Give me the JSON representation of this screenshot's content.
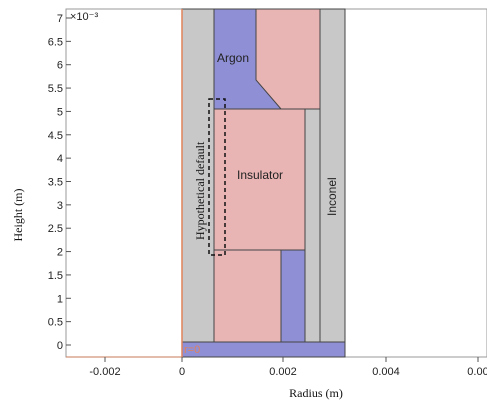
{
  "figure": {
    "exponent_label": "×10⁻³",
    "y_axis_label": "Height (m)",
    "x_axis_label": "Radius (m)",
    "r0_label": "r=0",
    "y_ticks": [
      "7",
      "6.5",
      "6",
      "5.5",
      "5",
      "4.5",
      "4",
      "3.5",
      "3",
      "2.5",
      "2",
      "1.5",
      "1",
      "0.5",
      "0"
    ],
    "x_ticks": [
      "-0.002",
      "0",
      "0.002",
      "0.004",
      "0.00"
    ]
  },
  "labels": {
    "argon": "Argon",
    "insulator": "Insulator",
    "inconel": "Inconel",
    "hypothetical": "Hypothetical default"
  },
  "colors": {
    "argon": "#8f8fd6",
    "insulator": "#e8b4b4",
    "inconel": "#c8c8c8",
    "axis_line": "#e0825a",
    "frame": "#c87a5a"
  }
}
